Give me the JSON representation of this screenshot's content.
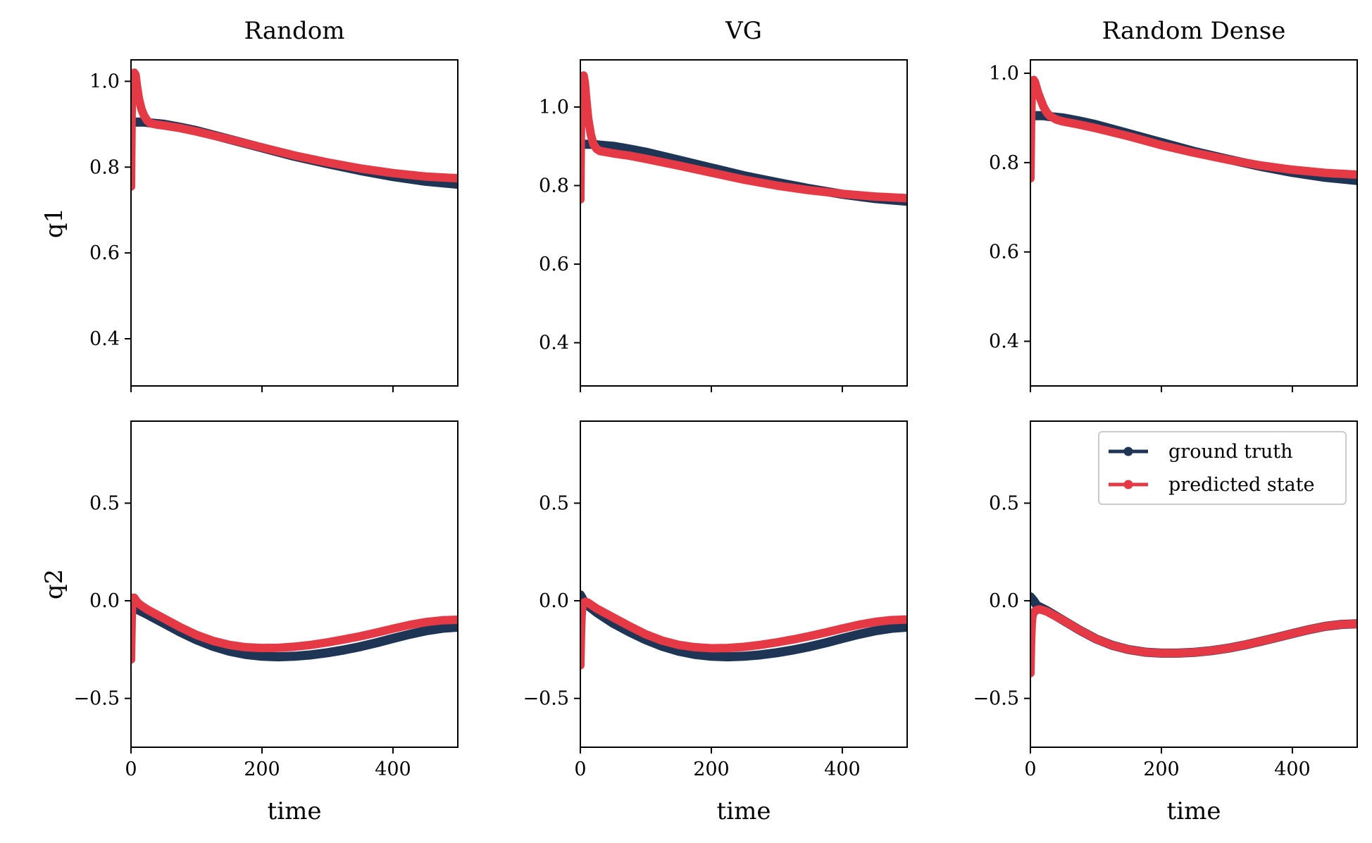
{
  "chart_data": {
    "type": "line",
    "layout": "2x3 grid of subplots, shared x-axis per column",
    "columns": [
      "Random",
      "VG",
      "Random Dense"
    ],
    "rows": [
      "q1",
      "q2"
    ],
    "xlabel": "time",
    "xlim": [
      0,
      499
    ],
    "xticks": [
      0,
      200,
      400
    ],
    "row_axes": [
      {
        "ylabel": "q1",
        "ylims": [
          [
            0.29,
            1.05
          ],
          [
            0.29,
            1.12
          ],
          [
            0.3,
            1.03
          ]
        ],
        "yticks": [
          0.4,
          0.6,
          0.8,
          1.0
        ],
        "ytick_labels": [
          "0.4",
          "0.6",
          "0.8",
          "1.0"
        ]
      },
      {
        "ylabel": "q2",
        "ylims": [
          [
            -0.75,
            0.92
          ],
          [
            -0.75,
            0.92
          ],
          [
            -0.75,
            0.92
          ]
        ],
        "yticks": [
          -0.5,
          0.0,
          0.5
        ],
        "ytick_labels": [
          "−0.5",
          "0.0",
          "0.5"
        ]
      }
    ],
    "series_style": [
      {
        "name": "ground truth",
        "color": "#1f3556"
      },
      {
        "name": "predicted state",
        "color": "#e63946"
      }
    ],
    "legend": {
      "location": "upper right",
      "panel": "row 2, column 3",
      "entries": [
        "ground truth",
        "predicted state"
      ]
    },
    "grid": false,
    "panels": [
      {
        "row": 0,
        "col": 0,
        "title": "Random",
        "series": [
          {
            "name": "ground truth",
            "x": [
              0,
              2,
              5,
              10,
              20,
              30,
              50,
              75,
              100,
              150,
              200,
              250,
              300,
              350,
              400,
              450,
              499
            ],
            "y": [
              0.9,
              0.905,
              0.905,
              0.905,
              0.905,
              0.903,
              0.9,
              0.893,
              0.885,
              0.865,
              0.845,
              0.825,
              0.808,
              0.792,
              0.778,
              0.767,
              0.76
            ]
          },
          {
            "name": "predicted state",
            "x": [
              0,
              1,
              2,
              3,
              5,
              7,
              9,
              12,
              16,
              20,
              25,
              30,
              40,
              50,
              75,
              100,
              150,
              200,
              250,
              300,
              350,
              400,
              450,
              499
            ],
            "y": [
              0.755,
              0.93,
              0.99,
              1.01,
              1.02,
              1.015,
              0.99,
              0.96,
              0.935,
              0.92,
              0.908,
              0.902,
              0.899,
              0.897,
              0.891,
              0.883,
              0.865,
              0.846,
              0.827,
              0.811,
              0.797,
              0.786,
              0.778,
              0.774
            ]
          }
        ]
      },
      {
        "row": 0,
        "col": 1,
        "title": "VG",
        "series": [
          {
            "name": "ground truth",
            "x": [
              0,
              2,
              5,
              10,
              20,
              30,
              50,
              75,
              100,
              150,
              200,
              250,
              300,
              350,
              400,
              450,
              499
            ],
            "y": [
              0.9,
              0.905,
              0.905,
              0.905,
              0.905,
              0.903,
              0.9,
              0.893,
              0.885,
              0.865,
              0.845,
              0.825,
              0.808,
              0.792,
              0.778,
              0.767,
              0.76
            ]
          },
          {
            "name": "predicted state",
            "x": [
              0,
              1,
              2,
              3,
              5,
              7,
              9,
              12,
              16,
              20,
              25,
              30,
              40,
              50,
              75,
              100,
              150,
              200,
              250,
              300,
              350,
              400,
              450,
              499
            ],
            "y": [
              0.765,
              0.97,
              1.05,
              1.075,
              1.08,
              1.06,
              1.02,
              0.97,
              0.93,
              0.905,
              0.893,
              0.888,
              0.885,
              0.882,
              0.876,
              0.868,
              0.851,
              0.833,
              0.815,
              0.8,
              0.788,
              0.779,
              0.772,
              0.768
            ]
          }
        ]
      },
      {
        "row": 0,
        "col": 2,
        "title": "Random Dense",
        "series": [
          {
            "name": "ground truth",
            "x": [
              0,
              2,
              5,
              10,
              20,
              30,
              50,
              75,
              100,
              150,
              200,
              250,
              300,
              350,
              400,
              450,
              499
            ],
            "y": [
              0.9,
              0.905,
              0.905,
              0.905,
              0.905,
              0.903,
              0.9,
              0.893,
              0.885,
              0.865,
              0.845,
              0.825,
              0.808,
              0.792,
              0.778,
              0.767,
              0.76
            ]
          },
          {
            "name": "predicted state",
            "x": [
              0,
              1,
              2,
              3,
              5,
              7,
              9,
              12,
              16,
              20,
              25,
              30,
              40,
              50,
              75,
              100,
              150,
              200,
              250,
              300,
              350,
              400,
              450,
              499
            ],
            "y": [
              0.765,
              0.89,
              0.95,
              0.975,
              0.985,
              0.98,
              0.97,
              0.955,
              0.94,
              0.925,
              0.912,
              0.904,
              0.896,
              0.892,
              0.885,
              0.877,
              0.859,
              0.839,
              0.822,
              0.807,
              0.794,
              0.784,
              0.777,
              0.773
            ]
          }
        ]
      },
      {
        "row": 1,
        "col": 0,
        "title": "",
        "series": [
          {
            "name": "ground truth",
            "x": [
              0,
              5,
              10,
              25,
              50,
              75,
              100,
              125,
              150,
              175,
              200,
              225,
              250,
              275,
              300,
              325,
              350,
              375,
              400,
              425,
              450,
              475,
              499
            ],
            "y": [
              -0.03,
              -0.035,
              -0.045,
              -0.07,
              -0.115,
              -0.16,
              -0.2,
              -0.233,
              -0.258,
              -0.275,
              -0.284,
              -0.287,
              -0.284,
              -0.277,
              -0.266,
              -0.252,
              -0.235,
              -0.215,
              -0.193,
              -0.172,
              -0.154,
              -0.141,
              -0.135
            ]
          },
          {
            "name": "predicted state",
            "x": [
              0,
              1,
              2,
              3,
              5,
              8,
              12,
              16,
              25,
              50,
              75,
              100,
              125,
              150,
              175,
              200,
              225,
              250,
              275,
              300,
              325,
              350,
              375,
              400,
              425,
              450,
              475,
              499
            ],
            "y": [
              -0.3,
              -0.1,
              0.0,
              0.015,
              0.015,
              0.0,
              -0.015,
              -0.025,
              -0.045,
              -0.09,
              -0.135,
              -0.175,
              -0.205,
              -0.226,
              -0.238,
              -0.242,
              -0.241,
              -0.235,
              -0.226,
              -0.213,
              -0.198,
              -0.182,
              -0.163,
              -0.143,
              -0.124,
              -0.109,
              -0.1,
              -0.097
            ]
          }
        ]
      },
      {
        "row": 1,
        "col": 1,
        "title": "",
        "series": [
          {
            "name": "ground truth",
            "x": [
              0,
              5,
              10,
              25,
              50,
              75,
              100,
              125,
              150,
              175,
              200,
              225,
              250,
              275,
              300,
              325,
              350,
              375,
              400,
              425,
              450,
              475,
              499
            ],
            "y": [
              0.03,
              0.0,
              -0.02,
              -0.06,
              -0.115,
              -0.16,
              -0.2,
              -0.233,
              -0.258,
              -0.275,
              -0.284,
              -0.287,
              -0.284,
              -0.277,
              -0.266,
              -0.252,
              -0.235,
              -0.215,
              -0.193,
              -0.172,
              -0.154,
              -0.141,
              -0.135
            ]
          },
          {
            "name": "predicted state",
            "x": [
              0,
              1,
              2,
              3,
              5,
              8,
              12,
              16,
              25,
              50,
              75,
              100,
              125,
              150,
              175,
              200,
              225,
              250,
              275,
              300,
              325,
              350,
              375,
              400,
              425,
              450,
              475,
              499
            ],
            "y": [
              -0.33,
              -0.16,
              -0.07,
              -0.03,
              -0.01,
              -0.005,
              -0.01,
              -0.02,
              -0.04,
              -0.085,
              -0.13,
              -0.172,
              -0.204,
              -0.226,
              -0.238,
              -0.243,
              -0.242,
              -0.236,
              -0.226,
              -0.213,
              -0.198,
              -0.181,
              -0.162,
              -0.142,
              -0.123,
              -0.108,
              -0.099,
              -0.096
            ]
          }
        ]
      },
      {
        "row": 1,
        "col": 2,
        "title": "",
        "series": [
          {
            "name": "ground truth",
            "x": [
              0,
              5,
              10,
              25,
              50,
              75,
              100,
              125,
              150,
              175,
              200,
              225,
              250,
              275,
              300,
              325,
              350,
              375,
              400,
              425,
              450,
              475,
              499
            ],
            "y": [
              0.02,
              0.0,
              -0.025,
              -0.05,
              -0.1,
              -0.15,
              -0.195,
              -0.228,
              -0.25,
              -0.263,
              -0.268,
              -0.268,
              -0.264,
              -0.256,
              -0.244,
              -0.228,
              -0.209,
              -0.189,
              -0.168,
              -0.148,
              -0.131,
              -0.121,
              -0.118
            ]
          },
          {
            "name": "predicted state",
            "x": [
              0,
              1,
              2,
              3,
              5,
              8,
              12,
              16,
              25,
              50,
              75,
              100,
              125,
              150,
              175,
              200,
              225,
              250,
              275,
              300,
              325,
              350,
              375,
              400,
              425,
              450,
              475,
              499
            ],
            "y": [
              -0.37,
              -0.21,
              -0.12,
              -0.08,
              -0.06,
              -0.05,
              -0.045,
              -0.045,
              -0.055,
              -0.1,
              -0.15,
              -0.195,
              -0.228,
              -0.25,
              -0.263,
              -0.268,
              -0.268,
              -0.264,
              -0.256,
              -0.244,
              -0.228,
              -0.209,
              -0.189,
              -0.168,
              -0.148,
              -0.131,
              -0.121,
              -0.118
            ]
          }
        ]
      }
    ]
  }
}
